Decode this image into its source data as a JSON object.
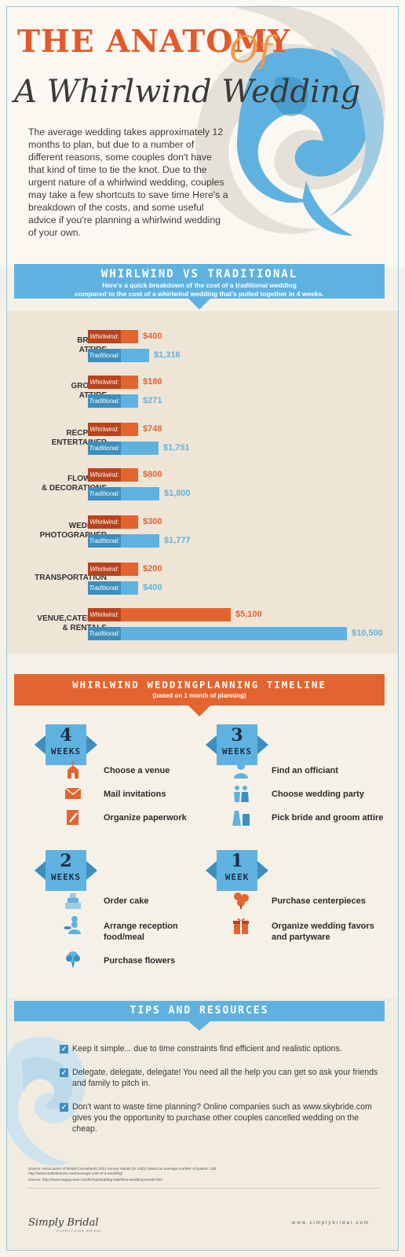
{
  "header": {
    "title_line1": "THE ANATOMY",
    "title_of": "Of",
    "title_line2": "A Whirlwind Wedding",
    "intro": "The average wedding takes approximately 12 months to plan, but due to a number of different reasons, some couples don't have that kind of time to tie the knot. Due to the urgent nature of a whirlwind wedding, couples may take a few shortcuts to save time  Here's a breakdown of the costs, and some useful advice if you're planning a whirlwind wedding of your own."
  },
  "comparison": {
    "title": "WHIRLWIND VS TRADITIONAL",
    "subtitle_line1": "Here's a quick breakdown of the cost of a traditional wedding",
    "subtitle_line2": "compared to the cost of a whirlwind wedding that's pulled together in 4 weeks.",
    "whirlwind_tag": "Whirlwind:",
    "traditional_tag": "Traditional:"
  },
  "chart_data": {
    "type": "bar",
    "orientation": "horizontal",
    "categories": [
      [
        "BRIDES",
        "ATTIRE"
      ],
      [
        "GROOMS",
        "ATTIRE"
      ],
      [
        "RECPTION",
        "ENTERTAINER"
      ],
      [
        "FLOWERS",
        "& DECORATIONS"
      ],
      [
        "WEDDING",
        "PHOTOGRAPHER"
      ],
      [
        "TRANSPORTATION"
      ],
      [
        "VENUE,CATERING",
        "& RENTALS"
      ]
    ],
    "series": [
      {
        "name": "Whirlwind:",
        "color": "#e3642f",
        "values": [
          400,
          180,
          748,
          800,
          300,
          200,
          5100
        ],
        "labels": [
          "$400",
          "$180",
          "$748",
          "$800",
          "$300",
          "$200",
          "$5,100"
        ]
      },
      {
        "name": "Traditional:",
        "color": "#5fb2df",
        "values": [
          1316,
          271,
          1751,
          1800,
          1777,
          400,
          10500
        ],
        "labels": [
          "$1,316",
          "$271",
          "$1,751",
          "$1,800",
          "$1,777",
          "$400",
          "$10,500"
        ]
      }
    ]
  },
  "timeline": {
    "title": "WHIRLWIND WEDDINGPLANNING TIMELINE",
    "subtitle": "(based on  1 month of planning)",
    "blocks": [
      {
        "number": "4",
        "unit": "WEEKS",
        "tasks": [
          {
            "icon": "church-icon",
            "text": "Choose a venue"
          },
          {
            "icon": "envelope-icon",
            "text": "Mail invitations"
          },
          {
            "icon": "pencil-paper-icon",
            "text": "Organize paperwork"
          }
        ]
      },
      {
        "number": "3",
        "unit": "WEEKS",
        "tasks": [
          {
            "icon": "officiant-icon",
            "text": "Find an officiant"
          },
          {
            "icon": "couple-icon",
            "text": "Choose wedding party"
          },
          {
            "icon": "dress-suit-icon",
            "text": "Pick bride and groom attire"
          }
        ]
      },
      {
        "number": "2",
        "unit": "WEEKS",
        "tasks": [
          {
            "icon": "cake-icon",
            "text": "Order cake"
          },
          {
            "icon": "chef-icon",
            "text": "Arrange reception food/meal"
          },
          {
            "icon": "bouquet-icon",
            "text": "Purchase flowers"
          }
        ]
      },
      {
        "number": "1",
        "unit": "WEEK",
        "tasks": [
          {
            "icon": "flowers-icon",
            "text": "Purchase centerpieces"
          },
          {
            "icon": "gift-icon",
            "text": "Organize wedding favors and partyware"
          }
        ]
      }
    ]
  },
  "tips": {
    "title": "TIPS AND RESOURCES",
    "items": [
      "Keep it simple... due to time constraints find efficient and realistic options.",
      "Delegate, delegate, delegate! You need all the help you can get so ask your friends and family to pitch in.",
      "Don't want to waste time planning? Online companies such as www.skybride.com gives you the opportunity to purchase other couples cancelled wedding on the cheap."
    ]
  },
  "footer": {
    "source1": "Source: Association of Bridal Consultants 2012 survey results (in USD) based on average number of guests: 139",
    "source1_url": "http://www.statisticbrain.com/average-cost-of-a-wedding/",
    "source2": "Source: http://www.happyvows.com/living/wedding-talk/slow-wedding-trends.htm",
    "logo": "Simply Bridal",
    "logo_sub": "EVERYTHING BRIDAL",
    "site": "www.simplybridal.com"
  },
  "colors": {
    "orange": "#e3642f",
    "blue": "#5fb2df",
    "dark_blue": "#3c8fbe",
    "cream": "#f6f1e7"
  }
}
